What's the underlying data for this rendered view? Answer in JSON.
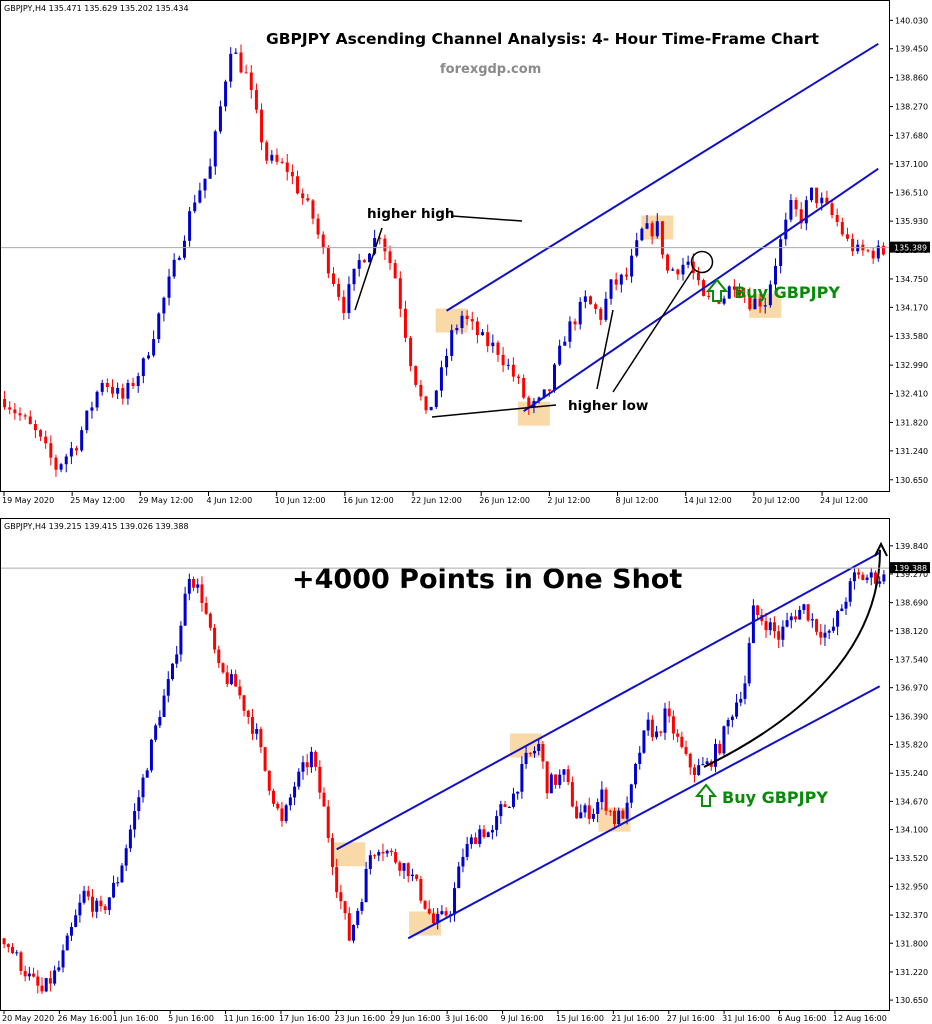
{
  "chart_data": [
    {
      "type": "candlestick",
      "title": "GBPJPY Ascending Channel Analysis: 4- Hour Time-Frame Chart",
      "site": "forexgdp.com",
      "header": "GBPJPY,H4  135.471 135.629 135.202 135.434",
      "current_price": "135.389",
      "ylim": [
        130.4,
        140.2
      ],
      "y_ticks": [
        "140.030",
        "139.450",
        "138.860",
        "138.270",
        "137.680",
        "137.100",
        "136.510",
        "135.930",
        "135.340",
        "134.750",
        "134.170",
        "133.580",
        "132.990",
        "132.410",
        "131.820",
        "131.240",
        "130.650"
      ],
      "x_ticks": [
        "19 May 2020",
        "25 May 12:00",
        "29 May 12:00",
        "4 Jun 12:00",
        "10 Jun 12:00",
        "16 Jun 12:00",
        "22 Jun 12:00",
        "26 Jun 12:00",
        "2 Jul 12:00",
        "8 Jul 12:00",
        "14 Jul 12:00",
        "20 Jul 12:00",
        "24 Jul 12:00"
      ],
      "price_path": [
        [
          0,
          132.3
        ],
        [
          6,
          131.6
        ],
        [
          10,
          130.9
        ],
        [
          14,
          131.4
        ],
        [
          19,
          132.7
        ],
        [
          23,
          132.3
        ],
        [
          27,
          133.0
        ],
        [
          33,
          135.0
        ],
        [
          37,
          136.4
        ],
        [
          40,
          137.0
        ],
        [
          44,
          139.5
        ],
        [
          47,
          138.9
        ],
        [
          51,
          137.2
        ],
        [
          55,
          137.0
        ],
        [
          60,
          136.0
        ],
        [
          62,
          135.3
        ],
        [
          66,
          134.2
        ],
        [
          69,
          135.1
        ],
        [
          73,
          135.7
        ],
        [
          76,
          134.8
        ],
        [
          79,
          133.1
        ],
        [
          82,
          131.9
        ],
        [
          85,
          132.8
        ],
        [
          87,
          133.6
        ],
        [
          89,
          134.0
        ],
        [
          93,
          133.5
        ],
        [
          96,
          133.3
        ],
        [
          100,
          132.6
        ],
        [
          102,
          132.1
        ],
        [
          104,
          132.2
        ],
        [
          106,
          132.5
        ],
        [
          109,
          133.6
        ],
        [
          113,
          134.3
        ],
        [
          116,
          134.0
        ],
        [
          118,
          134.6
        ],
        [
          121,
          134.8
        ],
        [
          124,
          135.7
        ],
        [
          127,
          135.8
        ],
        [
          129,
          134.9
        ],
        [
          133,
          135.1
        ],
        [
          136,
          134.3
        ],
        [
          140,
          134.4
        ],
        [
          142,
          134.7
        ],
        [
          145,
          134.3
        ],
        [
          148,
          134.3
        ],
        [
          151,
          135.5
        ],
        [
          153,
          136.2
        ],
        [
          155,
          136.0
        ],
        [
          157,
          136.5
        ],
        [
          159,
          136.3
        ],
        [
          162,
          135.9
        ],
        [
          164,
          135.5
        ],
        [
          166,
          135.3
        ]
      ],
      "channel_upper": {
        "from": [
          86,
          134.1
        ],
        "to": [
          170,
          139.55
        ]
      },
      "channel_lower": {
        "from": [
          101,
          132.05
        ],
        "to": [
          170,
          137.0
        ]
      },
      "annotations": {
        "higher_high": "higher high",
        "higher_low": "higher low",
        "buy": "Buy GBPJPY"
      },
      "highlighted_points": [
        {
          "label": "higher high",
          "x": 87,
          "y": 133.9
        },
        {
          "label": "higher high",
          "x": 127,
          "y": 135.8
        },
        {
          "label": "higher low",
          "x": 103,
          "y": 132.0
        },
        {
          "label": "higher low",
          "x": 148,
          "y": 134.2
        }
      ]
    },
    {
      "type": "candlestick",
      "title": "+4000 Points in One Shot",
      "header": "GBPJPY,H4  139.215 139.415 139.026 139.388",
      "current_price": "139.388",
      "ylim": [
        130.45,
        140.2
      ],
      "y_ticks": [
        "139.840",
        "139.270",
        "138.690",
        "138.120",
        "137.540",
        "136.970",
        "136.390",
        "135.820",
        "135.240",
        "134.670",
        "134.100",
        "133.520",
        "132.950",
        "132.370",
        "131.800",
        "131.220",
        "130.650"
      ],
      "x_ticks": [
        "20 May 2020",
        "26 May 16:00",
        "1 Jun 16:00",
        "5 Jun 16:00",
        "11 Jun 16:00",
        "17 Jun 16:00",
        "23 Jun 16:00",
        "29 Jun 16:00",
        "3 Jul 16:00",
        "9 Jul 16:00",
        "15 Jul 16:00",
        "21 Jul 16:00",
        "27 Jul 16:00",
        "31 Jul 16:00",
        "6 Aug 16:00",
        "12 Aug 16:00"
      ],
      "price_path": [
        [
          0,
          131.9
        ],
        [
          6,
          131.1
        ],
        [
          9,
          130.8
        ],
        [
          13,
          131.3
        ],
        [
          19,
          132.8
        ],
        [
          23,
          132.4
        ],
        [
          27,
          133.1
        ],
        [
          33,
          135.1
        ],
        [
          37,
          136.5
        ],
        [
          40,
          137.3
        ],
        [
          44,
          139.3
        ],
        [
          47,
          138.8
        ],
        [
          51,
          137.3
        ],
        [
          55,
          137.0
        ],
        [
          60,
          136.0
        ],
        [
          62,
          135.3
        ],
        [
          66,
          134.2
        ],
        [
          69,
          135.0
        ],
        [
          73,
          135.6
        ],
        [
          76,
          134.5
        ],
        [
          79,
          133.0
        ],
        [
          82,
          131.9
        ],
        [
          85,
          132.8
        ],
        [
          87,
          133.6
        ],
        [
          89,
          133.8
        ],
        [
          93,
          133.5
        ],
        [
          96,
          133.3
        ],
        [
          100,
          132.6
        ],
        [
          102,
          132.2
        ],
        [
          104,
          132.3
        ],
        [
          106,
          132.5
        ],
        [
          109,
          133.6
        ],
        [
          113,
          134.1
        ],
        [
          116,
          134.0
        ],
        [
          118,
          134.5
        ],
        [
          121,
          134.8
        ],
        [
          124,
          135.5
        ],
        [
          127,
          135.8
        ],
        [
          129,
          135.0
        ],
        [
          133,
          135.2
        ],
        [
          136,
          134.4
        ],
        [
          140,
          134.5
        ],
        [
          142,
          134.8
        ],
        [
          145,
          134.3
        ],
        [
          148,
          134.5
        ],
        [
          151,
          135.7
        ],
        [
          153,
          136.2
        ],
        [
          155,
          136.0
        ],
        [
          157,
          136.4
        ],
        [
          159,
          136.1
        ],
        [
          162,
          135.5
        ],
        [
          164,
          135.3
        ],
        [
          167,
          135.4
        ],
        [
          170,
          135.8
        ],
        [
          173,
          136.5
        ],
        [
          176,
          137.1
        ],
        [
          178,
          138.5
        ],
        [
          181,
          138.3
        ],
        [
          184,
          138.0
        ],
        [
          187,
          138.4
        ],
        [
          190,
          138.6
        ],
        [
          193,
          138.2
        ],
        [
          196,
          138.0
        ],
        [
          199,
          138.6
        ],
        [
          202,
          139.2
        ],
        [
          204,
          139.2
        ]
      ],
      "channel_upper": {
        "from": [
          79,
          133.7
        ],
        "to": [
          208,
          139.7
        ]
      },
      "channel_lower": {
        "from": [
          96,
          131.9
        ],
        "to": [
          208,
          137.0
        ]
      },
      "annotations": {
        "buy": "Buy GBPJPY"
      },
      "highlighted_points": [
        {
          "x": 82,
          "y": 133.6
        },
        {
          "x": 100,
          "y": 132.2
        },
        {
          "x": 124,
          "y": 135.8
        },
        {
          "x": 145,
          "y": 134.3
        }
      ]
    }
  ],
  "colors": {
    "bull": "#0000cc",
    "bear": "#ff0000",
    "channel": "#1010c8",
    "highlight": "#f9d29a",
    "buy_text": "#0a8a0a"
  }
}
